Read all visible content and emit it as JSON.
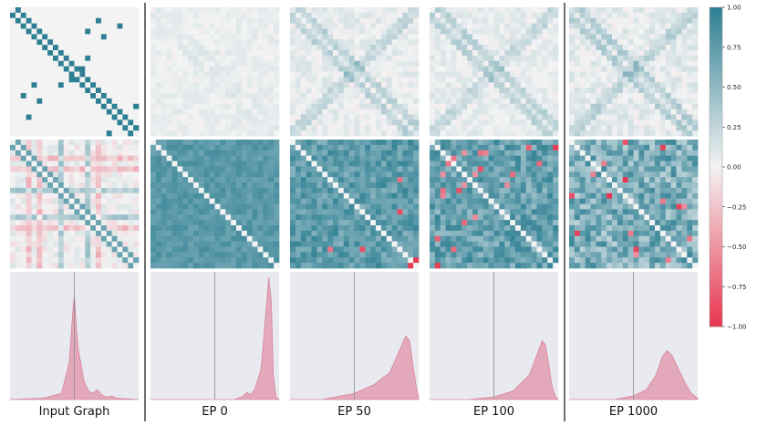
{
  "chart_data": {
    "type": "heatmap",
    "columns": [
      {
        "label": "Input Graph",
        "vline_x": 0.0
      },
      {
        "label": "EP 0",
        "vline_x": 0.0
      },
      {
        "label": "EP 50",
        "vline_x": 0.0
      },
      {
        "label": "EP 100",
        "vline_x": 0.0
      },
      {
        "label": "EP 1000",
        "vline_x": 0.0
      }
    ],
    "rows": [
      "adjacency matrix",
      "similarity matrix",
      "value density (KDE)"
    ],
    "matrix_size": 24,
    "colorbar": {
      "vmin": -1.0,
      "vmax": 1.0,
      "ticks": [
        "1.00",
        "0.75",
        "0.50",
        "0.25",
        "0.00",
        "−0.25",
        "−0.50",
        "−0.75",
        "−1.00"
      ],
      "colors": {
        "negative": "#e8354f",
        "neutral": "#f3f3f3",
        "positive": "#2e7f93"
      }
    },
    "density": {
      "x_range": [
        -1.0,
        1.0
      ],
      "background": "#e9e9f0",
      "fill": "#e3a9bb",
      "stroke": "#d6849c",
      "curves": [
        [
          [
            -1.0,
            0.0
          ],
          [
            -0.5,
            0.01
          ],
          [
            -0.2,
            0.05
          ],
          [
            -0.08,
            0.3
          ],
          [
            -0.02,
            0.75
          ],
          [
            0.0,
            0.85
          ],
          [
            0.03,
            0.6
          ],
          [
            0.06,
            0.42
          ],
          [
            0.1,
            0.3
          ],
          [
            0.15,
            0.15
          ],
          [
            0.22,
            0.07
          ],
          [
            0.28,
            0.05
          ],
          [
            0.36,
            0.08
          ],
          [
            0.42,
            0.04
          ],
          [
            0.5,
            0.02
          ],
          [
            0.58,
            0.03
          ],
          [
            0.66,
            0.01
          ],
          [
            1.0,
            0.0
          ]
        ],
        [
          [
            -1.0,
            0.0
          ],
          [
            0.3,
            0.0
          ],
          [
            0.42,
            0.02
          ],
          [
            0.5,
            0.06
          ],
          [
            0.55,
            0.04
          ],
          [
            0.62,
            0.08
          ],
          [
            0.72,
            0.25
          ],
          [
            0.8,
            0.75
          ],
          [
            0.84,
            1.0
          ],
          [
            0.88,
            0.8
          ],
          [
            0.91,
            0.2
          ],
          [
            0.95,
            0.02
          ],
          [
            1.0,
            0.0
          ]
        ],
        [
          [
            -1.0,
            0.0
          ],
          [
            -0.5,
            0.0
          ],
          [
            -0.3,
            0.02
          ],
          [
            0.0,
            0.05
          ],
          [
            0.3,
            0.12
          ],
          [
            0.55,
            0.22
          ],
          [
            0.7,
            0.4
          ],
          [
            0.8,
            0.52
          ],
          [
            0.86,
            0.48
          ],
          [
            0.92,
            0.25
          ],
          [
            0.97,
            0.08
          ],
          [
            1.0,
            0.02
          ]
        ],
        [
          [
            -1.0,
            0.0
          ],
          [
            -0.4,
            0.0
          ],
          [
            0.0,
            0.02
          ],
          [
            0.3,
            0.07
          ],
          [
            0.55,
            0.2
          ],
          [
            0.68,
            0.38
          ],
          [
            0.75,
            0.48
          ],
          [
            0.8,
            0.45
          ],
          [
            0.85,
            0.3
          ],
          [
            0.9,
            0.12
          ],
          [
            0.95,
            0.03
          ],
          [
            1.0,
            0.0
          ]
        ],
        [
          [
            -1.0,
            0.0
          ],
          [
            -0.3,
            0.0
          ],
          [
            0.0,
            0.03
          ],
          [
            0.2,
            0.08
          ],
          [
            0.35,
            0.2
          ],
          [
            0.45,
            0.35
          ],
          [
            0.52,
            0.4
          ],
          [
            0.6,
            0.36
          ],
          [
            0.7,
            0.25
          ],
          [
            0.8,
            0.14
          ],
          [
            0.9,
            0.05
          ],
          [
            1.0,
            0.01
          ]
        ]
      ]
    }
  }
}
